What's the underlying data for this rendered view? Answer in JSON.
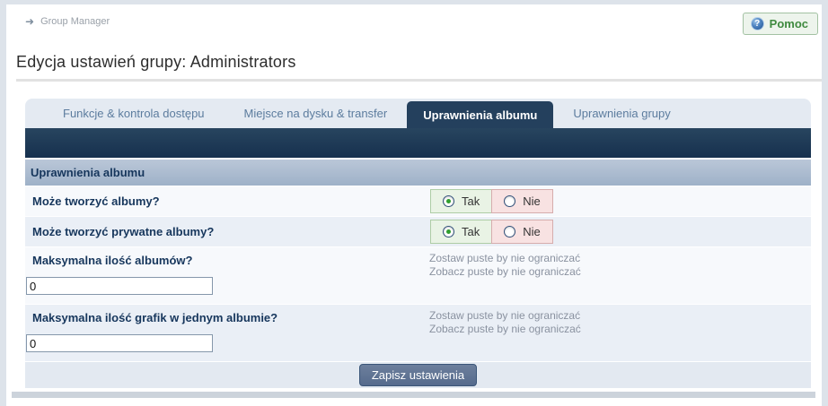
{
  "header": {
    "breadcrumb": "Group Manager",
    "breadcrumb_arrow_icon": "arrow-right",
    "help_button": {
      "label": "Pomoc",
      "icon": "question-mark-circle"
    },
    "title": "Edycja ustawień grupy: Administrators"
  },
  "tabs": [
    {
      "label": "Funkcje & kontrola dostępu",
      "active": false
    },
    {
      "label": "Miejsce na dysku & transfer",
      "active": false
    },
    {
      "label": "Uprawnienia albumu",
      "active": true
    },
    {
      "label": "Uprawnienia grupy",
      "active": false
    }
  ],
  "section": {
    "header": "Uprawnienia albumu"
  },
  "rows": [
    {
      "type": "radio",
      "label": "Może tworzyć albumy?",
      "options": [
        {
          "label": "Tak",
          "selected": true
        },
        {
          "label": "Nie",
          "selected": false
        }
      ]
    },
    {
      "type": "radio",
      "label": "Może tworzyć prywatne albumy?",
      "options": [
        {
          "label": "Tak",
          "selected": true
        },
        {
          "label": "Nie",
          "selected": false
        }
      ]
    },
    {
      "type": "input",
      "label": "Maksymalna ilość albumów?",
      "hint_line1": "Zostaw puste by nie ograniczać",
      "hint_line2": "Zobacz puste by nie ograniczać",
      "value": "0"
    },
    {
      "type": "input",
      "label": "Maksymalna ilość grafik w jednym albumie?",
      "hint_line1": "Zostaw puste by nie ograniczać",
      "hint_line2": "Zobacz puste by nie ograniczać",
      "value": "0"
    }
  ],
  "footer": {
    "save_button": "Zapisz ustawienia"
  },
  "colors": {
    "navy_bar": "#1d3553",
    "active_tab": "#24405d",
    "section_header": "#a9bacf",
    "yes_bg": "#e9f3e5",
    "no_bg": "#f8e2e2",
    "save_button": "#5e7391",
    "help_green": "#3f8a3f",
    "label_navy": "#16365c",
    "hint_gray": "#8a92a0"
  }
}
